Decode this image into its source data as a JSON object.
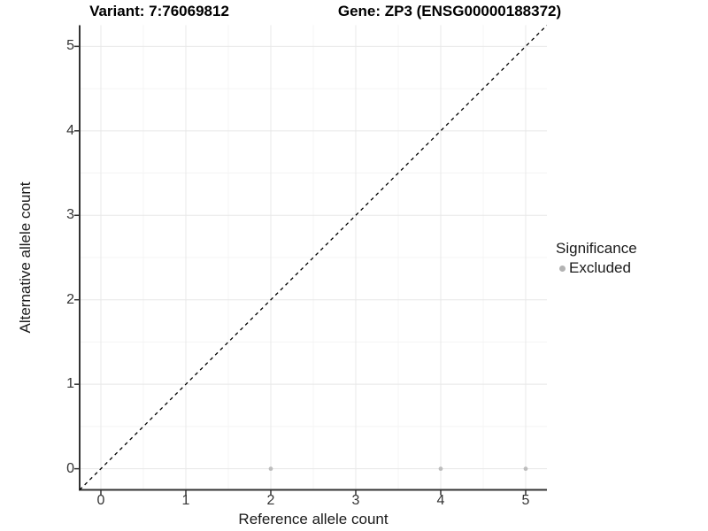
{
  "chart_data": {
    "type": "scatter",
    "title_left": "Variant: 7:76069812",
    "title_right": "Gene: ZP3 (ENSG00000188372)",
    "xlabel": "Reference allele count",
    "ylabel": "Alternative allele count",
    "xlim": [
      -0.25,
      5.25
    ],
    "ylim": [
      -0.25,
      5.25
    ],
    "x_ticks": [
      0,
      1,
      2,
      3,
      4,
      5
    ],
    "y_ticks": [
      0,
      1,
      2,
      3,
      4,
      5
    ],
    "grid": "major+minor",
    "minor_tick_step": 0.5,
    "series": [
      {
        "name": "Excluded",
        "color": "#bdbdbd",
        "points": [
          [
            2,
            0
          ],
          [
            4,
            0
          ],
          [
            5,
            0
          ]
        ]
      }
    ],
    "reference_line": {
      "type": "identity y=x",
      "style": "dashed",
      "color": "#000000"
    },
    "legend": {
      "position": "right",
      "title": "Significance",
      "items": [
        {
          "label": "Excluded",
          "color": "#b3b3b3"
        }
      ]
    },
    "colors": {
      "background": "#ffffff",
      "axis_line": "#333333",
      "tick_mark": "#333333",
      "grid_major": "#e8e8e8",
      "grid_minor": "#f4f4f4",
      "point": "#bdbdbd"
    }
  }
}
